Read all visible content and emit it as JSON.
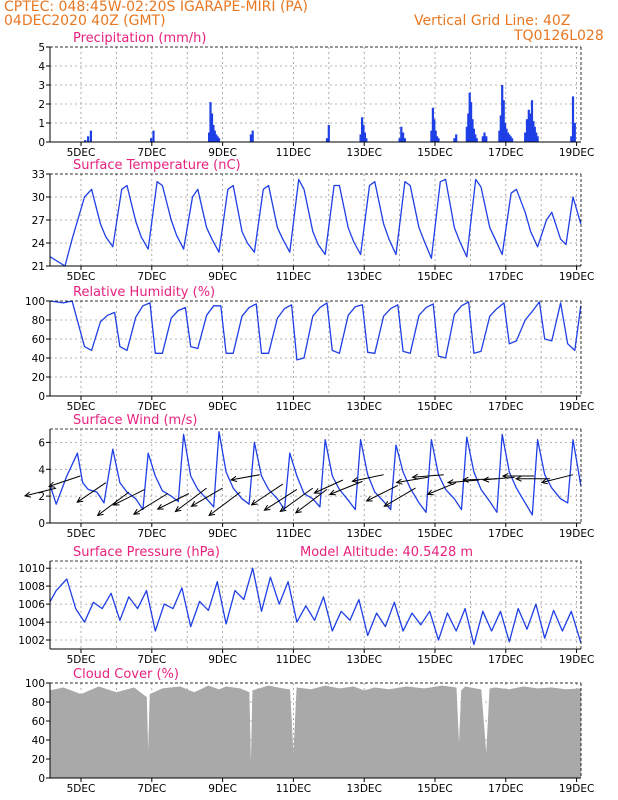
{
  "header": {
    "line1": "CPTEC:   048:45W-02:20S   IGARAPE-MIRI (PA)",
    "line2": "04DEC2020 40Z (GMT)",
    "grid_note": "Vertical Grid Line: 40Z",
    "code": "TQ0126L028",
    "color": "#e87722"
  },
  "colors": {
    "title": "#e8217e",
    "line": "#1f3fe6",
    "bar": "#1f3fe6",
    "cloud": "#a9a9a9",
    "wind": "#000000"
  },
  "chart_data": [
    {
      "type": "bar",
      "title": "Precipitation (mm/h)",
      "x_tick_labels": [
        "5DEC",
        "7DEC",
        "9DEC",
        "11DEC",
        "13DEC",
        "15DEC",
        "17DEC",
        "19DEC"
      ],
      "x_tick_days": [
        5,
        7,
        9,
        11,
        13,
        15,
        17,
        19
      ],
      "xlim": [
        4.125,
        19.125
      ],
      "ylim": [
        0,
        5
      ],
      "y_ticks": [
        0,
        1,
        2,
        3,
        4,
        5
      ],
      "x": [
        5.12,
        5.2,
        5.28,
        6.98,
        7.05,
        8.62,
        8.66,
        8.7,
        8.74,
        8.78,
        8.82,
        8.86,
        8.9,
        9.8,
        9.85,
        11.95,
        12,
        12.9,
        12.94,
        12.98,
        13.02,
        13.06,
        14.0,
        14.05,
        14.1,
        14.15,
        14.9,
        14.94,
        14.98,
        15.02,
        15.06,
        15.1,
        15.55,
        15.6,
        15.9,
        15.94,
        15.98,
        16.02,
        16.06,
        16.1,
        16.14,
        16.18,
        16.35,
        16.4,
        16.45,
        16.82,
        16.86,
        16.9,
        16.94,
        16.98,
        17.02,
        17.06,
        17.1,
        17.14,
        17.18,
        17.55,
        17.6,
        17.65,
        17.7,
        17.74,
        17.78,
        17.82,
        17.86,
        17.9,
        18.85,
        18.9,
        18.95
      ],
      "values": [
        0.1,
        0.3,
        0.6,
        0.2,
        0.6,
        0.5,
        2.1,
        1.5,
        0.9,
        0.6,
        0.4,
        0.3,
        0.2,
        0.4,
        0.6,
        0.2,
        0.9,
        0.4,
        1.3,
        0.9,
        0.5,
        0.2,
        0.2,
        0.8,
        0.5,
        0.2,
        0.6,
        1.8,
        1.2,
        0.6,
        0.3,
        0.2,
        0.2,
        0.4,
        0.8,
        1.5,
        2.6,
        2.1,
        1.2,
        0.7,
        0.4,
        0.2,
        0.3,
        0.5,
        0.3,
        0.6,
        1.4,
        3.0,
        2.2,
        1.0,
        0.7,
        0.5,
        0.4,
        0.3,
        0.2,
        0.5,
        1.2,
        1.7,
        1.5,
        2.2,
        1.1,
        0.8,
        0.5,
        0.3,
        0.3,
        2.4,
        1.0
      ]
    },
    {
      "type": "line",
      "title": "Surface Temperature (nC)",
      "x_tick_labels": [
        "5DEC",
        "7DEC",
        "9DEC",
        "11DEC",
        "13DEC",
        "15DEC",
        "17DEC",
        "19DEC"
      ],
      "x_tick_days": [
        5,
        7,
        9,
        11,
        13,
        15,
        17,
        19
      ],
      "xlim": [
        4.125,
        19.125
      ],
      "ylim": [
        21,
        33
      ],
      "y_ticks": [
        21,
        24,
        27,
        30,
        33
      ],
      "x": [
        4.13,
        4.55,
        4.75,
        5.1,
        5.3,
        5.55,
        5.7,
        5.9,
        6.15,
        6.3,
        6.55,
        6.7,
        6.9,
        7.15,
        7.3,
        7.55,
        7.7,
        7.9,
        8.15,
        8.3,
        8.55,
        8.7,
        8.9,
        9.15,
        9.3,
        9.55,
        9.7,
        9.9,
        10.15,
        10.3,
        10.55,
        10.7,
        10.9,
        11.15,
        11.3,
        11.55,
        11.7,
        11.9,
        12.15,
        12.3,
        12.55,
        12.7,
        12.9,
        13.15,
        13.3,
        13.55,
        13.7,
        13.9,
        14.15,
        14.3,
        14.55,
        14.7,
        14.9,
        15.15,
        15.3,
        15.55,
        15.7,
        15.9,
        16.15,
        16.3,
        16.55,
        16.7,
        16.9,
        17.15,
        17.3,
        17.55,
        17.7,
        17.9,
        18.15,
        18.3,
        18.55,
        18.7,
        18.9,
        19.12
      ],
      "values": [
        22.2,
        21.0,
        24.5,
        30.0,
        31.0,
        26.5,
        24.8,
        23.5,
        31.0,
        31.5,
        26.8,
        24.8,
        23.2,
        32.0,
        31.5,
        27.0,
        25.0,
        23.2,
        30.0,
        31.0,
        26.0,
        24.5,
        22.8,
        31.0,
        31.5,
        25.5,
        24.0,
        22.8,
        31.0,
        31.5,
        26.0,
        24.5,
        22.8,
        32.3,
        31.0,
        25.5,
        23.8,
        22.5,
        31.5,
        31.5,
        26.0,
        24.2,
        22.5,
        31.5,
        32.0,
        26.5,
        24.5,
        22.5,
        32.0,
        31.5,
        26.0,
        24.2,
        22.0,
        32.0,
        32.3,
        26.0,
        24.2,
        22.2,
        32.3,
        31.3,
        26.0,
        24.5,
        22.5,
        30.5,
        31.0,
        28.0,
        25.5,
        23.5,
        27.0,
        28.0,
        24.5,
        23.8,
        30.0,
        26.5
      ]
    },
    {
      "type": "line",
      "title": "Relative Humidity (%)",
      "x_tick_labels": [
        "5DEC",
        "7DEC",
        "9DEC",
        "11DEC",
        "13DEC",
        "15DEC",
        "17DEC",
        "19DEC"
      ],
      "x_tick_days": [
        5,
        7,
        9,
        11,
        13,
        15,
        17,
        19
      ],
      "xlim": [
        4.125,
        19.125
      ],
      "ylim": [
        0,
        100
      ],
      "y_ticks": [
        0,
        20,
        40,
        60,
        80,
        100
      ],
      "x": [
        4.13,
        4.5,
        4.75,
        5.1,
        5.3,
        5.55,
        5.75,
        5.95,
        6.1,
        6.3,
        6.55,
        6.75,
        6.95,
        7.1,
        7.3,
        7.55,
        7.75,
        7.95,
        8.1,
        8.3,
        8.55,
        8.75,
        8.95,
        9.1,
        9.3,
        9.55,
        9.75,
        9.95,
        10.1,
        10.3,
        10.55,
        10.75,
        10.95,
        11.1,
        11.3,
        11.55,
        11.75,
        11.95,
        12.1,
        12.3,
        12.55,
        12.75,
        12.95,
        13.1,
        13.3,
        13.55,
        13.75,
        13.95,
        14.1,
        14.3,
        14.55,
        14.75,
        14.95,
        15.1,
        15.3,
        15.55,
        15.75,
        15.95,
        16.1,
        16.3,
        16.55,
        16.75,
        16.95,
        17.1,
        17.3,
        17.55,
        17.75,
        17.95,
        18.1,
        18.3,
        18.55,
        18.75,
        18.95,
        19.12
      ],
      "values": [
        100,
        98,
        100,
        52,
        48,
        78,
        85,
        88,
        52,
        48,
        83,
        95,
        98,
        45,
        45,
        82,
        90,
        93,
        52,
        50,
        85,
        95,
        95,
        45,
        45,
        84,
        93,
        97,
        45,
        45,
        82,
        92,
        96,
        38,
        40,
        84,
        93,
        98,
        48,
        45,
        85,
        94,
        96,
        46,
        45,
        84,
        92,
        96,
        47,
        45,
        85,
        93,
        97,
        42,
        40,
        86,
        95,
        99,
        45,
        47,
        84,
        92,
        98,
        55,
        58,
        80,
        89,
        99,
        60,
        58,
        98,
        55,
        48,
        95
      ]
    },
    {
      "type": "line",
      "title": "Surface Wind (m/s)",
      "x_tick_labels": [
        "5DEC",
        "7DEC",
        "9DEC",
        "11DEC",
        "13DEC",
        "15DEC",
        "17DEC",
        "19DEC"
      ],
      "x_tick_days": [
        5,
        7,
        9,
        11,
        13,
        15,
        17,
        19
      ],
      "xlim": [
        4.125,
        19.125
      ],
      "ylim": [
        0,
        7
      ],
      "y_ticks": [
        0,
        2,
        4,
        6
      ],
      "x": [
        4.13,
        4.3,
        4.6,
        4.9,
        5.05,
        5.2,
        5.45,
        5.65,
        5.9,
        6.1,
        6.3,
        6.55,
        6.75,
        6.9,
        7.1,
        7.3,
        7.55,
        7.75,
        7.9,
        8.1,
        8.3,
        8.55,
        8.75,
        8.9,
        9.1,
        9.3,
        9.55,
        9.75,
        9.9,
        10.1,
        10.3,
        10.55,
        10.75,
        10.9,
        11.1,
        11.3,
        11.55,
        11.75,
        11.9,
        12.1,
        12.3,
        12.55,
        12.75,
        12.9,
        13.1,
        13.3,
        13.55,
        13.75,
        13.9,
        14.1,
        14.3,
        14.55,
        14.75,
        14.9,
        15.1,
        15.3,
        15.55,
        15.75,
        15.9,
        16.1,
        16.3,
        16.55,
        16.75,
        16.9,
        17.1,
        17.3,
        17.55,
        17.75,
        17.9,
        18.1,
        18.3,
        18.55,
        18.75,
        18.9,
        19.12
      ],
      "values": [
        2.8,
        1.4,
        3.5,
        5.2,
        3.0,
        2.5,
        2.3,
        1.5,
        5.5,
        3.0,
        2.3,
        1.8,
        1.0,
        5.2,
        3.5,
        2.4,
        2.0,
        1.6,
        6.6,
        3.5,
        2.5,
        1.8,
        1.2,
        6.8,
        3.8,
        2.6,
        1.8,
        1.4,
        6.0,
        3.5,
        2.5,
        1.8,
        1.0,
        5.2,
        3.5,
        2.2,
        1.8,
        1.2,
        6.2,
        3.5,
        2.5,
        1.7,
        1.0,
        6.2,
        3.6,
        2.3,
        1.6,
        1.0,
        5.8,
        3.8,
        2.6,
        1.5,
        0.8,
        6.2,
        3.6,
        2.5,
        1.8,
        1.0,
        6.4,
        3.8,
        2.5,
        1.6,
        0.8,
        6.6,
        3.8,
        2.6,
        1.5,
        0.6,
        6.2,
        3.6,
        2.6,
        1.8,
        1.5,
        6.2,
        2.8
      ],
      "arrows_x": [
        4.3,
        4.98,
        5.7,
        6.35,
        6.8,
        7.45,
        8.05,
        8.55,
        9.0,
        9.5,
        10.05,
        10.7,
        11.1,
        11.55,
        11.95,
        12.4,
        12.95,
        13.55,
        13.95,
        14.45,
        14.8,
        15.25,
        15.6,
        16.25,
        16.75,
        17.25,
        17.8,
        18.25,
        18.9
      ],
      "arrows_y": [
        2.6,
        3.5,
        3.0,
        2.3,
        2.5,
        2.2,
        2.2,
        2.6,
        2.6,
        2.3,
        3.6,
        2.9,
        2.5,
        2.6,
        2.5,
        3.2,
        3.1,
        3.6,
        2.8,
        2.6,
        3.4,
        3.6,
        3.0,
        3.2,
        3.3,
        3.4,
        3.5,
        3.3,
        3.6
      ],
      "arrows_u": [
        2.4,
        2.4,
        2.2,
        2.4,
        2.4,
        2.6,
        2.4,
        2.4,
        2.4,
        2.4,
        2.2,
        2.4,
        2.5,
        2.5,
        2.4,
        2.2,
        2.5,
        2.4,
        2.4,
        2.4,
        2.4,
        2.4,
        2.2,
        2.4,
        2.6,
        2.4,
        2.4,
        2.6,
        2.4
      ],
      "arrows_v": [
        0.6,
        0.8,
        1.5,
        1.8,
        1.2,
        1.6,
        1.2,
        1.8,
        1.4,
        1.8,
        0.4,
        1.6,
        1.6,
        1.8,
        1.8,
        1.0,
        1.0,
        0.5,
        1.2,
        1.4,
        0.4,
        0.2,
        0.9,
        0.2,
        0.1,
        0.2,
        0.0,
        0.0,
        0.6
      ]
    },
    {
      "type": "line",
      "title": "Surface Pressure (hPa)",
      "annotation": "Model Altitude: 40.5428 m",
      "x_tick_labels": [
        "5DEC",
        "7DEC",
        "9DEC",
        "11DEC",
        "13DEC",
        "15DEC",
        "17DEC",
        "19DEC"
      ],
      "x_tick_days": [
        5,
        7,
        9,
        11,
        13,
        15,
        17,
        19
      ],
      "xlim": [
        4.125,
        19.125
      ],
      "ylim": [
        1001.0,
        1010.8
      ],
      "y_ticks": [
        1002,
        1004,
        1006,
        1008,
        1010
      ],
      "x": [
        4.13,
        4.3,
        4.6,
        4.85,
        5.1,
        5.35,
        5.6,
        5.85,
        6.1,
        6.35,
        6.6,
        6.85,
        7.1,
        7.35,
        7.6,
        7.85,
        8.1,
        8.35,
        8.6,
        8.85,
        9.1,
        9.35,
        9.6,
        9.85,
        10.1,
        10.35,
        10.6,
        10.85,
        11.1,
        11.35,
        11.6,
        11.85,
        12.1,
        12.35,
        12.6,
        12.85,
        13.1,
        13.35,
        13.6,
        13.85,
        14.1,
        14.35,
        14.6,
        14.85,
        15.1,
        15.35,
        15.6,
        15.85,
        16.1,
        16.35,
        16.6,
        16.85,
        17.1,
        17.35,
        17.6,
        17.85,
        18.1,
        18.35,
        18.6,
        18.85,
        19.12
      ],
      "values": [
        1006.3,
        1007.5,
        1008.8,
        1005.5,
        1004.0,
        1006.2,
        1005.5,
        1007.2,
        1004.2,
        1006.8,
        1005.5,
        1007.5,
        1003.0,
        1006.0,
        1005.5,
        1007.8,
        1003.5,
        1006.3,
        1005.3,
        1008.5,
        1003.8,
        1007.5,
        1006.5,
        1010.0,
        1005.2,
        1009.0,
        1006.0,
        1008.5,
        1004.0,
        1005.8,
        1004.2,
        1006.8,
        1003.0,
        1005.2,
        1004.2,
        1006.5,
        1002.5,
        1005.0,
        1003.5,
        1006.2,
        1003.0,
        1005.0,
        1003.7,
        1005.2,
        1002.0,
        1005.0,
        1003.0,
        1005.5,
        1001.5,
        1005.2,
        1003.0,
        1005.2,
        1001.8,
        1005.5,
        1003.2,
        1006.0,
        1002.2,
        1005.3,
        1003.0,
        1005.2,
        1001.7
      ]
    },
    {
      "type": "area",
      "title": "Cloud Cover (%)",
      "x_tick_labels": [
        "5DEC",
        "7DEC",
        "9DEC",
        "11DEC",
        "13DEC",
        "15DEC",
        "17DEC",
        "19DEC"
      ],
      "x_tick_days": [
        5,
        7,
        9,
        11,
        13,
        15,
        17,
        19
      ],
      "xlim": [
        4.125,
        19.125
      ],
      "ylim": [
        0,
        100
      ],
      "y_ticks": [
        0,
        20,
        40,
        60,
        80,
        100
      ],
      "x": [
        4.13,
        4.5,
        5.0,
        5.5,
        6.0,
        6.5,
        6.85,
        6.9,
        6.95,
        7.3,
        7.8,
        8.2,
        8.6,
        8.9,
        9.1,
        9.5,
        9.75,
        9.8,
        9.85,
        10.3,
        10.7,
        10.9,
        11.0,
        11.1,
        11.5,
        11.9,
        12.3,
        12.7,
        13.0,
        13.3,
        13.7,
        14.2,
        14.7,
        15.2,
        15.6,
        15.68,
        15.75,
        15.85,
        16.0,
        16.3,
        16.45,
        16.55,
        16.7,
        17.1,
        17.5,
        17.9,
        18.3,
        18.7,
        19.12
      ],
      "values": [
        92,
        95,
        88,
        96,
        90,
        95,
        85,
        18,
        88,
        94,
        96,
        90,
        97,
        93,
        96,
        94,
        90,
        2,
        92,
        97,
        94,
        93,
        20,
        95,
        93,
        97,
        94,
        96,
        92,
        95,
        93,
        96,
        94,
        97,
        95,
        30,
        92,
        96,
        95,
        93,
        22,
        94,
        95,
        93,
        96,
        94,
        95,
        93,
        94
      ]
    }
  ]
}
